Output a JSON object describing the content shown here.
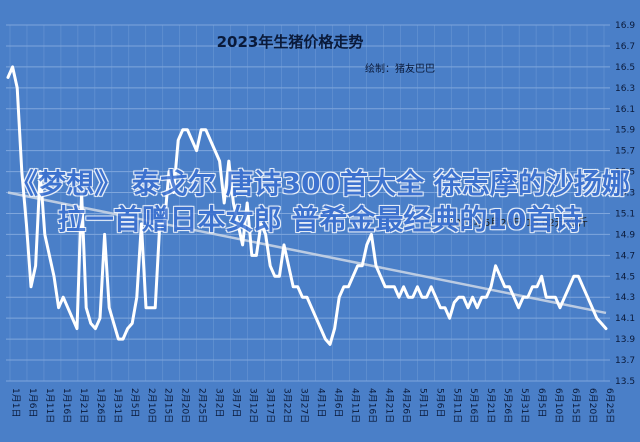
{
  "overlay_text": "《梦想》 泰戈尔 唐诗300首大全 徐志摩的沙扬娜拉一首赠日本女郎 普希金最经典的10首诗",
  "colors": {
    "background": "#4a7fc8",
    "line": "#ffffff",
    "trend": "#c8d4e4",
    "grid": "#7fa6dc",
    "text": "#0a1a3a",
    "annotation": "#1a1a1a"
  },
  "chart_data": {
    "type": "line",
    "title": "2023年生猪价格走势",
    "subtitle": "绘制：猪友巴巴",
    "annotation": "2023年6月26日 15.02元/公斤",
    "ylim": [
      13.5,
      16.9
    ],
    "y_ticks": [
      13.5,
      13.7,
      13.9,
      14.1,
      14.3,
      14.5,
      14.7,
      14.9,
      15.1,
      15.3,
      15.5,
      15.7,
      15.9,
      16.1,
      16.3,
      16.5,
      16.7,
      16.9
    ],
    "x_tick_labels": [
      "1月1日",
      "1月6日",
      "1月11日",
      "1月16日",
      "1月21日",
      "1月26日",
      "1月31日",
      "2月5日",
      "2月10日",
      "2月15日",
      "2月20日",
      "2月25日",
      "3月2日",
      "3月7日",
      "3月12日",
      "3月17日",
      "3月22日",
      "3月27日",
      "4月1日",
      "4月6日",
      "4月11日",
      "4月16日",
      "4月21日",
      "4月26日",
      "5月1日",
      "5月6日",
      "5月11日",
      "5月16日",
      "5月21日",
      "5月26日",
      "5月31日",
      "6月5日",
      "6月10日",
      "6月15日",
      "6月20日",
      "6月25日"
    ],
    "series": [
      {
        "values": [
          16.4,
          16.5,
          16.3,
          15.5,
          15.0,
          14.4,
          14.6,
          15.5,
          14.9,
          14.7,
          14.5,
          14.2,
          14.3,
          14.2,
          14.1,
          14.0,
          15.3,
          14.2,
          14.05,
          14.0,
          14.1,
          14.9,
          14.2,
          14.05,
          13.9,
          13.9,
          14.0,
          14.05,
          14.3,
          15.0,
          14.2,
          14.2,
          14.2,
          15.0,
          15.0,
          15.5,
          15.3,
          15.8,
          15.9,
          15.9,
          15.8,
          15.7,
          15.9,
          15.9,
          15.8,
          15.7,
          15.6,
          15.2,
          15.6,
          15.2,
          15.0,
          14.8,
          15.2,
          14.7,
          14.7,
          15.0,
          14.9,
          14.6,
          14.5,
          14.5,
          14.8,
          14.6,
          14.4,
          14.4,
          14.3,
          14.3,
          14.2,
          14.1,
          14.0,
          13.9,
          13.85,
          14.0,
          14.3,
          14.4,
          14.4,
          14.5,
          14.6,
          14.6,
          14.8,
          14.9,
          14.6,
          14.5,
          14.4,
          14.4,
          14.4,
          14.3,
          14.4,
          14.3,
          14.3,
          14.4,
          14.3,
          14.3,
          14.4,
          14.3,
          14.2,
          14.2,
          14.1,
          14.25,
          14.3,
          14.3,
          14.2,
          14.3,
          14.2,
          14.3,
          14.3,
          14.4,
          14.6,
          14.5,
          14.4,
          14.4,
          14.3,
          14.2,
          14.3,
          14.3,
          14.4,
          14.4,
          14.5,
          14.3,
          14.3,
          14.3,
          14.2,
          14.3,
          14.4,
          14.5,
          14.5,
          14.4,
          14.3,
          14.2,
          14.1,
          14.05,
          14.0
        ]
      }
    ],
    "trend": {
      "start": 15.3,
      "end": 14.15
    },
    "grid": true,
    "legend": "none"
  }
}
